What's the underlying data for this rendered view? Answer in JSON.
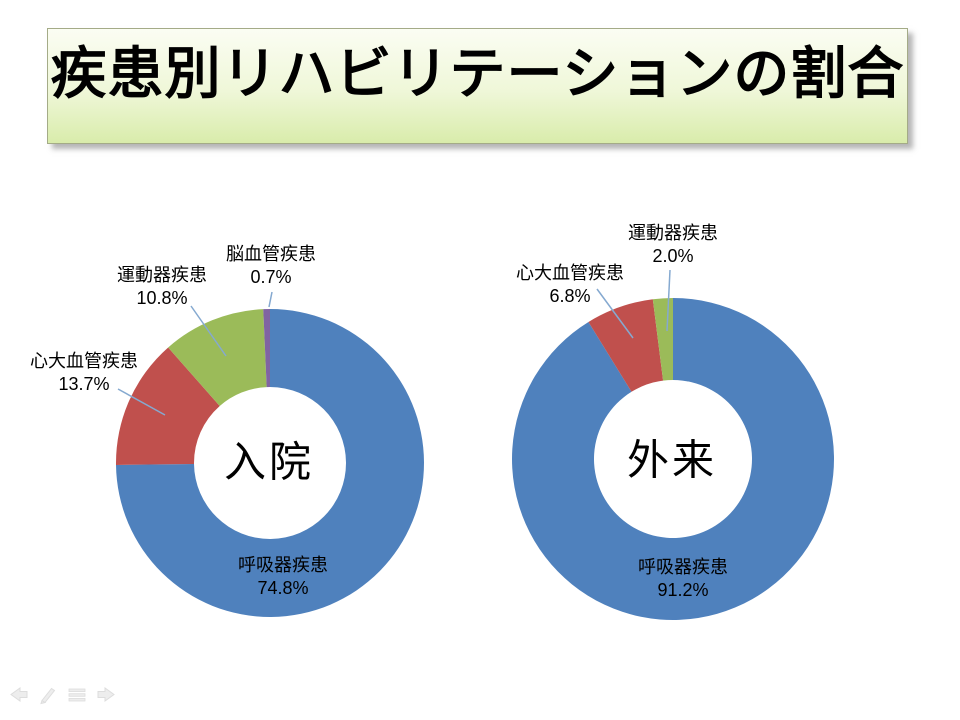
{
  "slide": {
    "title": "疾患別リハビリテーションの割合"
  },
  "colors": {
    "blue": "#4f81bd",
    "red": "#c0504d",
    "green": "#9bbb59",
    "purple": "#8064a2",
    "leader_line": "#85a9d0",
    "title_gradient_top": "#fbfdf3",
    "title_gradient_bottom": "#d9ecab"
  },
  "chart_data": [
    {
      "type": "pie",
      "subtype": "donut",
      "id": "inpatient",
      "center_label": "入院",
      "start_angle_deg": 0,
      "direction": "clockwise",
      "hole_ratio": 0.49,
      "legend": "none",
      "slices": [
        {
          "id": "respiratory",
          "label": "呼吸器疾患",
          "value": 74.8,
          "value_label": "74.8%",
          "color": "#4f81bd"
        },
        {
          "id": "cardiovascular",
          "label": "心大血管疾患",
          "value": 13.7,
          "value_label": "13.7%",
          "color": "#c0504d"
        },
        {
          "id": "musculoskeletal",
          "label": "運動器疾患",
          "value": 10.8,
          "value_label": "10.8%",
          "color": "#9bbb59"
        },
        {
          "id": "cerebrovascular",
          "label": "脳血管疾患",
          "value": 0.7,
          "value_label": "0.7%",
          "color": "#8064a2"
        }
      ]
    },
    {
      "type": "pie",
      "subtype": "donut",
      "id": "outpatient",
      "center_label": "外来",
      "start_angle_deg": 0,
      "direction": "clockwise",
      "hole_ratio": 0.49,
      "legend": "none",
      "slices": [
        {
          "id": "respiratory",
          "label": "呼吸器疾患",
          "value": 91.2,
          "value_label": "91.2%",
          "color": "#4f81bd"
        },
        {
          "id": "cardiovascular",
          "label": "心大血管疾患",
          "value": 6.8,
          "value_label": "6.8%",
          "color": "#c0504d"
        },
        {
          "id": "musculoskeletal",
          "label": "運動器疾患",
          "value": 2.0,
          "value_label": "2.0%",
          "color": "#9bbb59"
        }
      ]
    }
  ]
}
